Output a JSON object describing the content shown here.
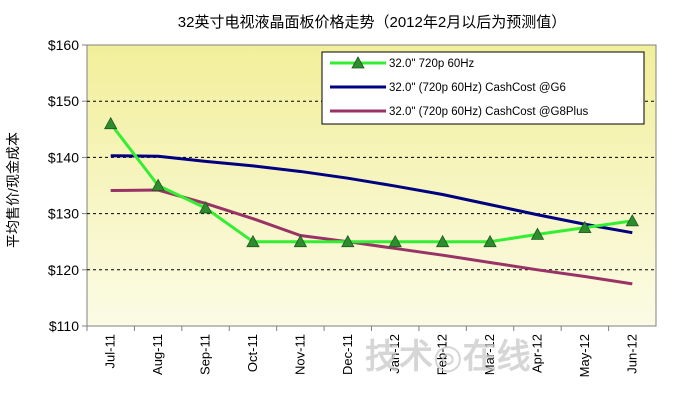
{
  "chart_data": {
    "type": "line",
    "title": "32英寸电视液晶面板价格走势（2012年2月以后为预测值）",
    "xlabel": "",
    "ylabel": "平均售价/现金成本",
    "categories": [
      "Jul-11",
      "Aug-11",
      "Sep-11",
      "Oct-11",
      "Nov-11",
      "Dec-11",
      "Jan-12",
      "Feb-12",
      "Mar-12",
      "Apr-12",
      "May-12",
      "Jun-12"
    ],
    "ylim": [
      110,
      160
    ],
    "yticks": [
      110,
      120,
      130,
      140,
      150,
      160
    ],
    "ytick_labels": [
      "$110",
      "$120",
      "$130",
      "$140",
      "$150",
      "$160"
    ],
    "grid": "horizontal dashed",
    "legend_position": "top-right",
    "series": [
      {
        "name": "32.0\" 720p 60Hz",
        "color": "#33ee33",
        "marker": "triangle",
        "values": [
          146,
          135,
          131,
          125,
          125,
          125,
          125,
          125,
          125,
          126.3,
          127.5,
          128.7
        ]
      },
      {
        "name": "32.0\" (720p 60Hz) CashCost @G6",
        "color": "#000080",
        "marker": "none",
        "values": [
          140.3,
          140.2,
          139.3,
          138.5,
          137.5,
          136.3,
          134.9,
          133.4,
          131.6,
          129.8,
          128.1,
          126.6
        ]
      },
      {
        "name": "32.0\" (720p 60Hz) CashCost @G8Plus",
        "color": "#993366",
        "marker": "none",
        "values": [
          134.1,
          134.2,
          131.8,
          129.1,
          126.1,
          125.0,
          123.8,
          122.6,
          121.3,
          120.0,
          118.8,
          117.5
        ]
      }
    ],
    "watermark": "技术◎在线"
  }
}
